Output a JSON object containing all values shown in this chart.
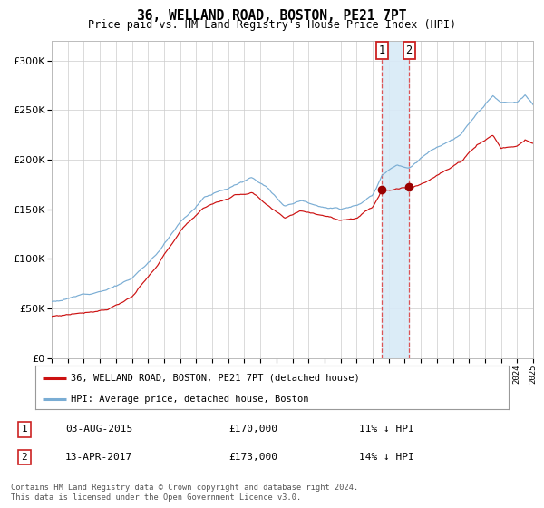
{
  "title": "36, WELLAND ROAD, BOSTON, PE21 7PT",
  "subtitle": "Price paid vs. HM Land Registry's House Price Index (HPI)",
  "legend_line1": "36, WELLAND ROAD, BOSTON, PE21 7PT (detached house)",
  "legend_line2": "HPI: Average price, detached house, Boston",
  "marker1_date": "03-AUG-2015",
  "marker1_price": 170000,
  "marker1_label": "11% ↓ HPI",
  "marker2_date": "13-APR-2017",
  "marker2_price": 173000,
  "marker2_label": "14% ↓ HPI",
  "footer": "Contains HM Land Registry data © Crown copyright and database right 2024.\nThis data is licensed under the Open Government Licence v3.0.",
  "hpi_color": "#7aadd4",
  "price_color": "#cc1111",
  "marker_color": "#990000",
  "vline_color": "#dd4444",
  "shade_color": "#d8eaf7",
  "background_color": "#ffffff",
  "grid_color": "#cccccc",
  "ylim": [
    0,
    320000
  ],
  "yticks": [
    0,
    50000,
    100000,
    150000,
    200000,
    250000,
    300000
  ],
  "start_year": 1995,
  "end_year": 2025,
  "marker1_x": 2015.58,
  "marker2_x": 2017.27,
  "hpi_seed": 12,
  "price_seed": 77
}
